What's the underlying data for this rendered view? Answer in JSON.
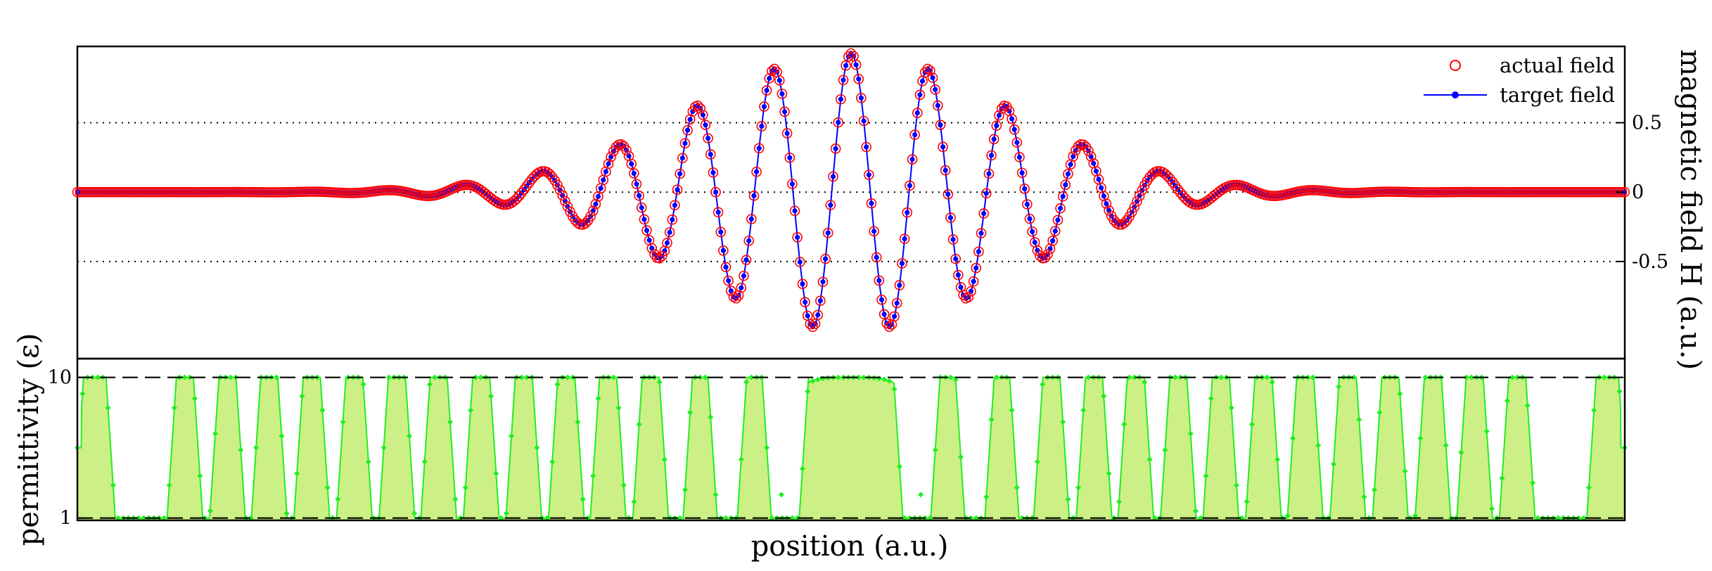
{
  "chart_data": [
    {
      "type": "line",
      "panel": "field",
      "title": "",
      "ylabel": "magnetic field H (a.u.)",
      "y_axis_side": "right",
      "ylim": [
        -1.2,
        1.05
      ],
      "xlim": [
        -1,
        1
      ],
      "yticks": [
        {
          "value": 0.5,
          "label": "0.5"
        },
        {
          "value": 0,
          "label": "0"
        },
        {
          "value": -0.5,
          "label": "-0.5"
        }
      ],
      "grid_lines": [
        0.5,
        0,
        -0.5
      ],
      "legend": "top-right",
      "series": [
        {
          "name": "actual field",
          "marker": "open circle",
          "color": "#ff0000"
        },
        {
          "name": "target field",
          "marker": "filled dot with line",
          "color": "#0000ff"
        }
      ],
      "function": "exp(-(x/0.29)^2) * cos(2*pi*x/0.1)",
      "sample_step": 0.0033
    },
    {
      "type": "area",
      "panel": "permittivity",
      "title": "",
      "ylabel": "permittivity (ε)",
      "y_axis_side": "left",
      "xlabel": "position (a.u.)",
      "xlim": [
        -1,
        1
      ],
      "ylim": [
        0.85,
        11.2
      ],
      "yticks": [
        {
          "value": 10,
          "label": "10"
        },
        {
          "value": 1,
          "label": "1"
        }
      ],
      "reference_lines": [
        10,
        1
      ],
      "color": "#22ee22",
      "fill_color": "#ccf085",
      "high_segments": [
        [
          -0.992,
          -0.963
        ],
        [
          -0.872,
          -0.85
        ],
        [
          -0.817,
          -0.795
        ],
        [
          -0.763,
          -0.741
        ],
        [
          -0.708,
          -0.686
        ],
        [
          -0.653,
          -0.631
        ],
        [
          -0.598,
          -0.576
        ],
        [
          -0.544,
          -0.522
        ],
        [
          -0.489,
          -0.467
        ],
        [
          -0.434,
          -0.412
        ],
        [
          -0.379,
          -0.357
        ],
        [
          -0.325,
          -0.303
        ],
        [
          -0.27,
          -0.248
        ],
        [
          -0.205,
          -0.185
        ],
        [
          -0.135,
          -0.115
        ],
        [
          -0.055,
          0.055
        ],
        [
          0.115,
          0.135
        ],
        [
          0.185,
          0.205
        ],
        [
          0.248,
          0.27
        ],
        [
          0.303,
          0.325
        ],
        [
          0.357,
          0.379
        ],
        [
          0.412,
          0.434
        ],
        [
          0.467,
          0.489
        ],
        [
          0.522,
          0.544
        ],
        [
          0.576,
          0.598
        ],
        [
          0.631,
          0.653
        ],
        [
          0.686,
          0.708
        ],
        [
          0.741,
          0.763
        ],
        [
          0.795,
          0.817
        ],
        [
          0.85,
          0.872
        ],
        [
          0.963,
          0.992
        ]
      ],
      "low_dips": [
        {
          "x": -0.09,
          "value": 2.5
        },
        {
          "x": 0.09,
          "value": 2.5
        }
      ],
      "edge_values": {
        "left": 5.5,
        "right": 5.5
      }
    }
  ]
}
